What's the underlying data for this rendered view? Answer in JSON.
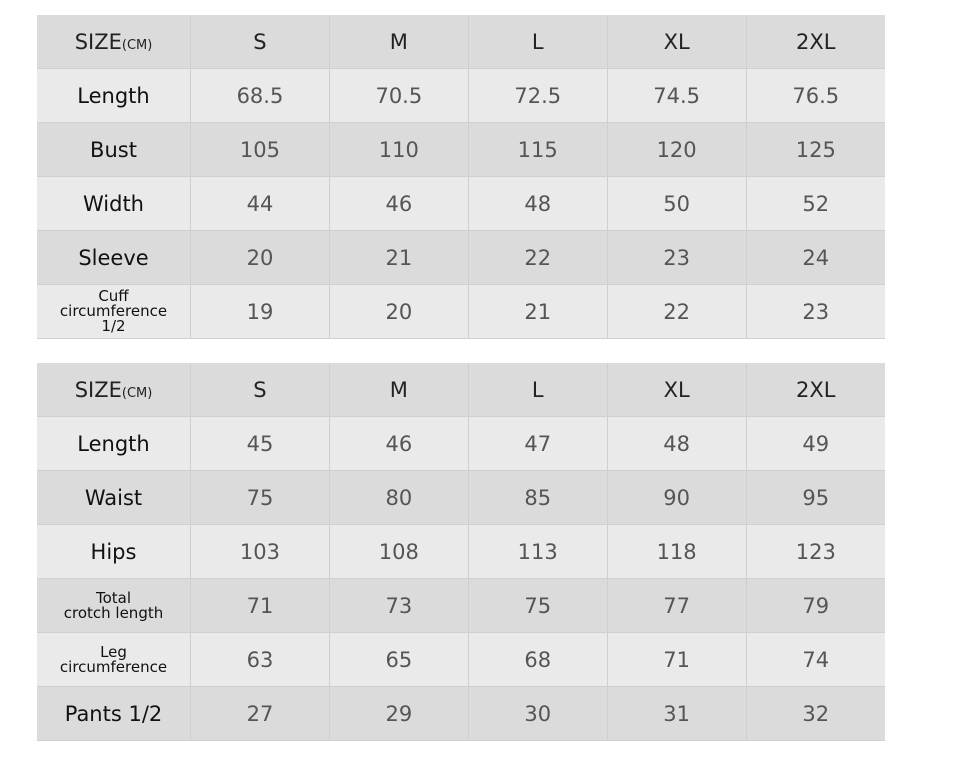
{
  "tables": [
    {
      "header": {
        "label": "SIZE",
        "unit": "(CM)",
        "sizes": [
          "S",
          "M",
          "L",
          "XL",
          "2XL"
        ]
      },
      "rows": [
        {
          "label": "Length",
          "values": [
            "68.5",
            "70.5",
            "72.5",
            "74.5",
            "76.5"
          ]
        },
        {
          "label": "Bust",
          "values": [
            "105",
            "110",
            "115",
            "120",
            "125"
          ]
        },
        {
          "label": "Width",
          "values": [
            "44",
            "46",
            "48",
            "50",
            "52"
          ]
        },
        {
          "label": "Sleeve",
          "values": [
            "20",
            "21",
            "22",
            "23",
            "24"
          ]
        },
        {
          "label_lines": [
            "Cuff",
            "circumference",
            "1/2"
          ],
          "values": [
            "19",
            "20",
            "21",
            "22",
            "23"
          ]
        }
      ]
    },
    {
      "header": {
        "label": "SIZE",
        "unit": "(CM)",
        "sizes": [
          "S",
          "M",
          "L",
          "XL",
          "2XL"
        ]
      },
      "rows": [
        {
          "label": "Length",
          "values": [
            "45",
            "46",
            "47",
            "48",
            "49"
          ]
        },
        {
          "label": "Waist",
          "values": [
            "75",
            "80",
            "85",
            "90",
            "95"
          ]
        },
        {
          "label": "Hips",
          "values": [
            "103",
            "108",
            "113",
            "118",
            "123"
          ]
        },
        {
          "label_lines": [
            "Total",
            "crotch length"
          ],
          "values": [
            "71",
            "73",
            "75",
            "77",
            "79"
          ]
        },
        {
          "label_lines": [
            "Leg",
            "circumference"
          ],
          "values": [
            "63",
            "65",
            "68",
            "71",
            "74"
          ]
        },
        {
          "label": "Pants 1/2",
          "values": [
            "27",
            "29",
            "30",
            "31",
            "32"
          ]
        }
      ]
    }
  ]
}
